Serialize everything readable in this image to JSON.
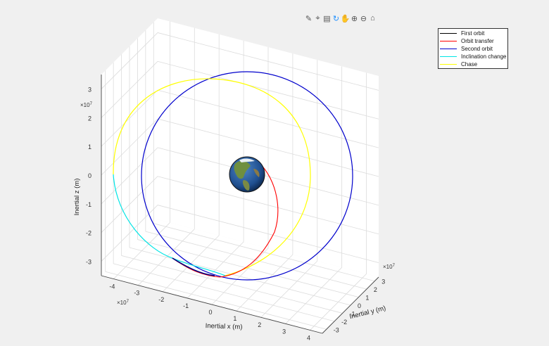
{
  "toolbar": {
    "icons": [
      "brush-icon",
      "data-tip-icon",
      "export-icon",
      "rotate-icon",
      "pan-icon",
      "zoom-in-icon",
      "zoom-out-icon",
      "home-icon"
    ]
  },
  "chart_data": {
    "type": "line",
    "title": "",
    "xlabel": "Inertial x (m)",
    "ylabel": "Inertial y (m)",
    "zlabel": "Inertial z (m)",
    "axis_exponent": "×10^7",
    "x_ticks": [
      -4,
      -3,
      -2,
      -1,
      0,
      1,
      2,
      3,
      4
    ],
    "y_ticks": [
      -3,
      -2,
      -1,
      0,
      1,
      2,
      3
    ],
    "z_ticks": [
      -3,
      -2,
      -1,
      0,
      1,
      2,
      3
    ],
    "xlim": [
      -4.5,
      4.5
    ],
    "ylim": [
      -3.5,
      3.5
    ],
    "zlim": [
      -3.5,
      3.5
    ],
    "grid": true,
    "legend_position": "top-right",
    "series": [
      {
        "name": "First orbit",
        "color": "#000000"
      },
      {
        "name": "Orbit transfer",
        "color": "#ff0000"
      },
      {
        "name": "Second orbit",
        "color": "#0000cc"
      },
      {
        "name": "Inclination change",
        "color": "#00e5e5"
      },
      {
        "name": "Chase",
        "color": "#ffff00"
      }
    ]
  }
}
